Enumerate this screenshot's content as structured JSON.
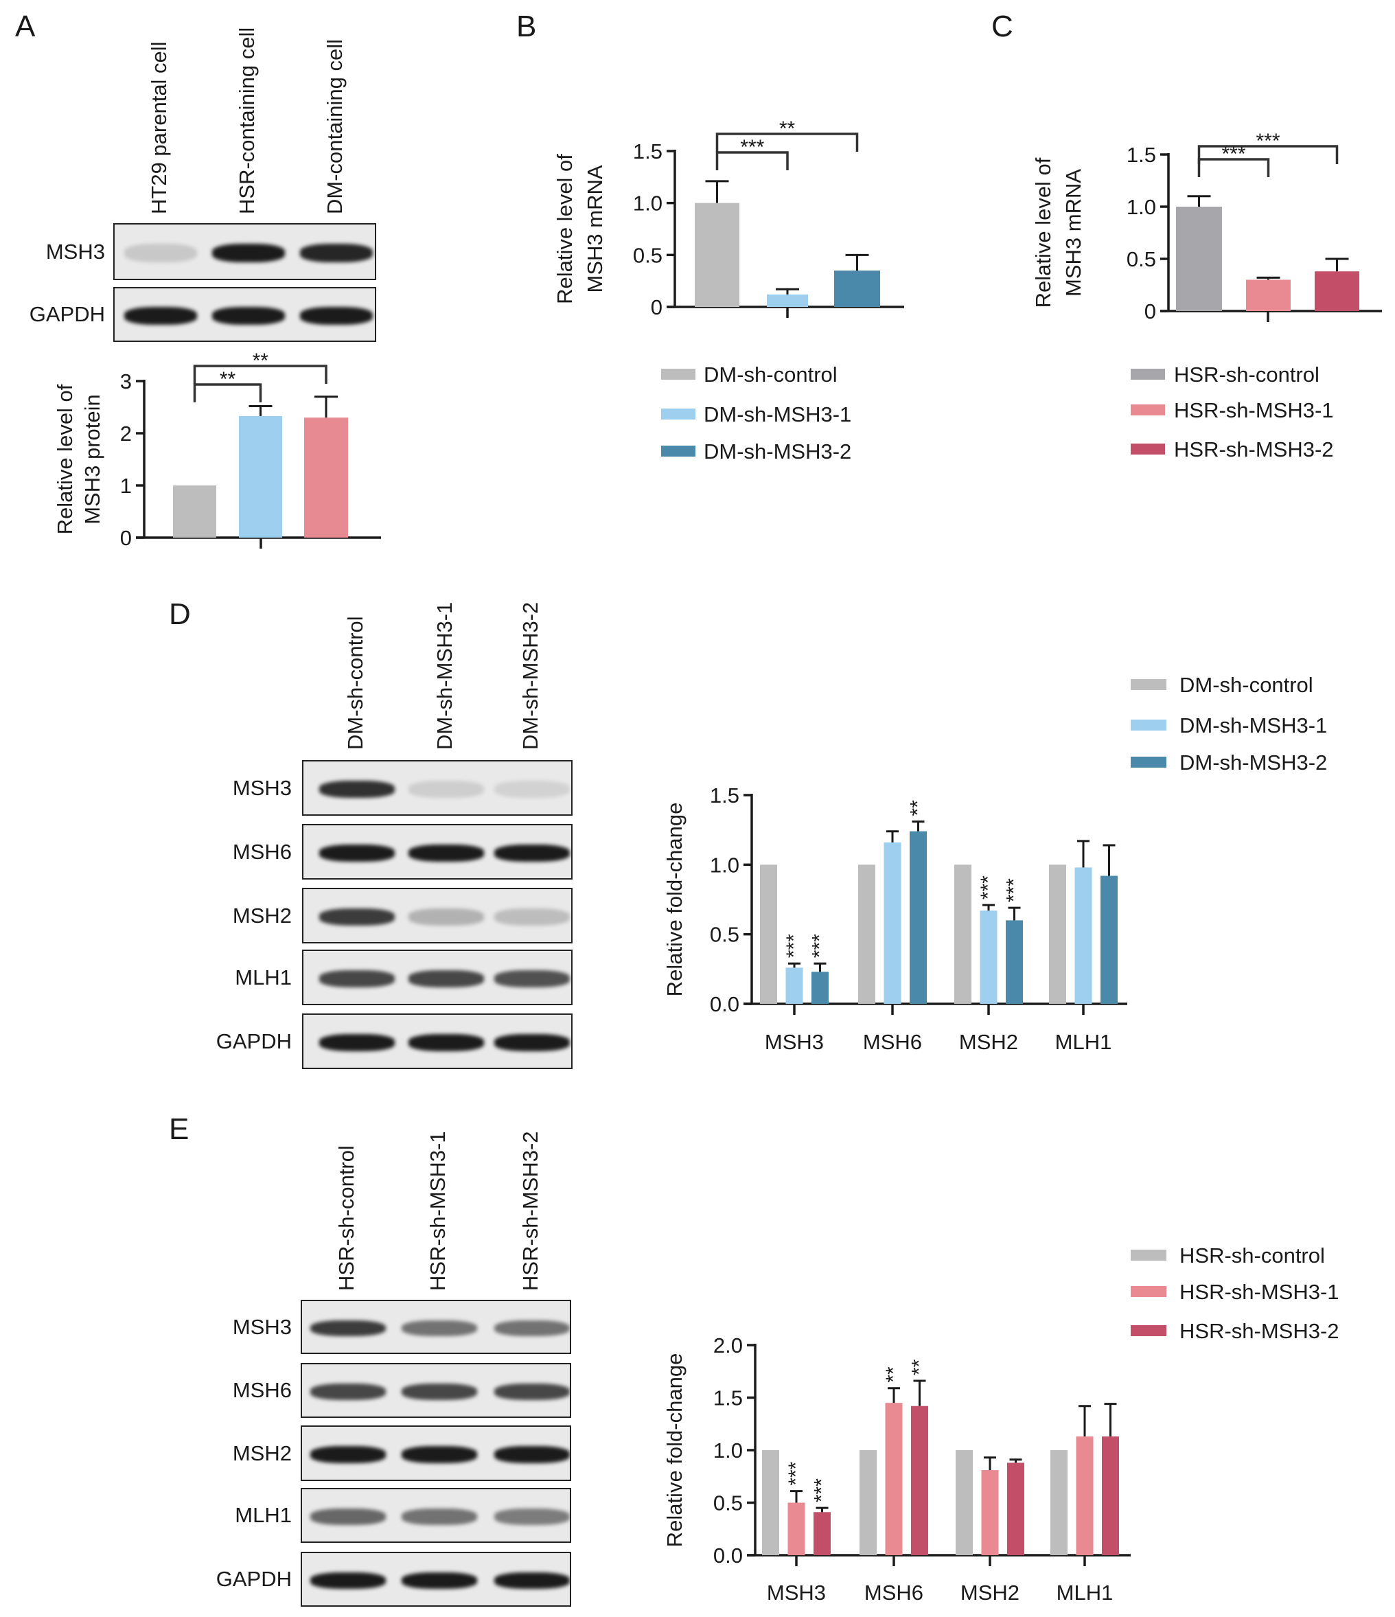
{
  "panels": {
    "A": "A",
    "B": "B",
    "C": "C",
    "D": "D",
    "E": "E"
  },
  "colors": {
    "control": "#bdbdbd",
    "dm_sh1": "#9ecfee",
    "dm_sh2": "#4a89aa",
    "hsr_sh1": "#e98a93",
    "hsr_sh2": "#c24f67",
    "parental": "#bdbdbd",
    "hsr_cell": "#9ecfee",
    "dm_cell": "#e88a92"
  },
  "blots": {
    "A": {
      "lanes": [
        "HT29 parental cell",
        "HSR-containing cell",
        "DM-containing cell"
      ],
      "rows": [
        {
          "label": "MSH3",
          "band_intensity": [
            0.15,
            0.95,
            0.9
          ]
        },
        {
          "label": "GAPDH",
          "band_intensity": [
            0.95,
            0.95,
            0.95
          ]
        }
      ]
    },
    "D": {
      "lanes": [
        "DM-sh-control",
        "DM-sh-MSH3-1",
        "DM-sh-MSH3-2"
      ],
      "rows": [
        {
          "label": "MSH3",
          "band_intensity": [
            0.85,
            0.12,
            0.1
          ]
        },
        {
          "label": "MSH6",
          "band_intensity": [
            0.95,
            0.95,
            0.95
          ]
        },
        {
          "label": "MSH2",
          "band_intensity": [
            0.8,
            0.25,
            0.2
          ]
        },
        {
          "label": "MLH1",
          "band_intensity": [
            0.75,
            0.75,
            0.7
          ]
        },
        {
          "label": "GAPDH",
          "band_intensity": [
            0.95,
            0.95,
            0.95
          ]
        }
      ]
    },
    "E": {
      "lanes": [
        "HSR-sh-control",
        "HSR-sh-MSH3-1",
        "HSR-sh-MSH3-2"
      ],
      "rows": [
        {
          "label": "MSH3",
          "band_intensity": [
            0.8,
            0.55,
            0.55
          ]
        },
        {
          "label": "MSH6",
          "band_intensity": [
            0.75,
            0.75,
            0.75
          ]
        },
        {
          "label": "MSH2",
          "band_intensity": [
            0.95,
            0.95,
            0.95
          ]
        },
        {
          "label": "MLH1",
          "band_intensity": [
            0.6,
            0.55,
            0.5
          ]
        },
        {
          "label": "GAPDH",
          "band_intensity": [
            0.95,
            0.95,
            0.95
          ]
        }
      ]
    }
  },
  "chart_data": [
    {
      "panel": "A",
      "type": "bar",
      "ylabel": [
        "Relative level of",
        "MSH3 protein"
      ],
      "ylim": [
        0,
        3
      ],
      "yticks": [
        "0",
        "1",
        "2",
        "3"
      ],
      "grid": false,
      "bars": [
        {
          "value": 1.0,
          "error": 0,
          "color": "#bdbdbd"
        },
        {
          "value": 2.33,
          "error": 0.19,
          "color": "#9ecfee"
        },
        {
          "value": 2.3,
          "error": 0.4,
          "color": "#e88a92"
        }
      ],
      "significance": [
        {
          "from": 0,
          "to": 1,
          "label": "**"
        },
        {
          "from": 0,
          "to": 2,
          "label": "**"
        }
      ]
    },
    {
      "panel": "B",
      "type": "bar",
      "ylabel": [
        "Relative level of",
        "MSH3 mRNA"
      ],
      "ylim": [
        0,
        1.5
      ],
      "yticks": [
        "0",
        "0.5",
        "1.0",
        "1.5"
      ],
      "grid": false,
      "bars": [
        {
          "value": 1.0,
          "error": 0.21,
          "color": "#bdbdbd"
        },
        {
          "value": 0.12,
          "error": 0.05,
          "color": "#9ecfee"
        },
        {
          "value": 0.35,
          "error": 0.15,
          "color": "#4a89aa"
        }
      ],
      "significance": [
        {
          "from": 0,
          "to": 1,
          "label": "***"
        },
        {
          "from": 0,
          "to": 2,
          "label": "**"
        }
      ],
      "legend": [
        "DM-sh-control",
        "DM-sh-MSH3-1",
        "DM-sh-MSH3-2"
      ],
      "legend_position": "bottom"
    },
    {
      "panel": "C",
      "type": "bar",
      "ylabel": [
        "Relative level of",
        "MSH3 mRNA"
      ],
      "ylim": [
        0,
        1.5
      ],
      "yticks": [
        "0",
        "0.5",
        "1.0",
        "1.5"
      ],
      "grid": false,
      "bars": [
        {
          "value": 1.0,
          "error": 0.1,
          "color": "#a7a7ab"
        },
        {
          "value": 0.3,
          "error": 0.02,
          "color": "#e98a93"
        },
        {
          "value": 0.38,
          "error": 0.12,
          "color": "#c24f67"
        }
      ],
      "significance": [
        {
          "from": 0,
          "to": 1,
          "label": "***"
        },
        {
          "from": 0,
          "to": 2,
          "label": "***"
        }
      ],
      "legend": [
        "HSR-sh-control",
        "HSR-sh-MSH3-1",
        "HSR-sh-MSH3-2"
      ],
      "legend_position": "bottom"
    },
    {
      "panel": "D",
      "type": "bar",
      "ylabel": "Relative fold-change",
      "ylim": [
        0,
        1.5
      ],
      "yticks": [
        "0.0",
        "0.5",
        "1.0",
        "1.5"
      ],
      "grid": false,
      "categories": [
        "MSH3",
        "MSH6",
        "MSH2",
        "MLH1"
      ],
      "legend_position": "top-right",
      "series": [
        {
          "name": "DM-sh-control",
          "color": "#bdbdbd",
          "values": [
            1,
            1,
            1,
            1
          ],
          "errors": [
            0,
            0,
            0,
            0
          ],
          "sig": [
            "",
            "",
            "",
            ""
          ]
        },
        {
          "name": "DM-sh-MSH3-1",
          "color": "#9ecfee",
          "values": [
            0.26,
            1.16,
            0.67,
            0.98
          ],
          "errors": [
            0.03,
            0.08,
            0.04,
            0.19
          ],
          "sig": [
            "***",
            "",
            "***",
            ""
          ]
        },
        {
          "name": "DM-sh-MSH3-2",
          "color": "#4a89aa",
          "values": [
            0.23,
            1.24,
            0.6,
            0.92
          ],
          "errors": [
            0.06,
            0.07,
            0.09,
            0.22
          ],
          "sig": [
            "***",
            "**",
            "***",
            ""
          ]
        }
      ]
    },
    {
      "panel": "E",
      "type": "bar",
      "ylabel": "Relative fold-change",
      "ylim": [
        0,
        2.0
      ],
      "yticks": [
        "0.0",
        "0.5",
        "1.0",
        "1.5",
        "2.0"
      ],
      "grid": false,
      "categories": [
        "MSH3",
        "MSH6",
        "MSH2",
        "MLH1"
      ],
      "legend_position": "top-right",
      "series": [
        {
          "name": "HSR-sh-control",
          "color": "#bdbdbd",
          "values": [
            1,
            1,
            1,
            1
          ],
          "errors": [
            0,
            0,
            0,
            0
          ],
          "sig": [
            "",
            "",
            "",
            ""
          ]
        },
        {
          "name": "HSR-sh-MSH3-1",
          "color": "#e98a93",
          "values": [
            0.5,
            1.45,
            0.81,
            1.13
          ],
          "errors": [
            0.11,
            0.14,
            0.12,
            0.29
          ],
          "sig": [
            "***",
            "**",
            "",
            ""
          ]
        },
        {
          "name": "HSR-sh-MSH3-2",
          "color": "#c24f67",
          "values": [
            0.41,
            1.42,
            0.88,
            1.13
          ],
          "errors": [
            0.04,
            0.24,
            0.03,
            0.31
          ],
          "sig": [
            "***",
            "**",
            "",
            ""
          ]
        }
      ]
    }
  ]
}
